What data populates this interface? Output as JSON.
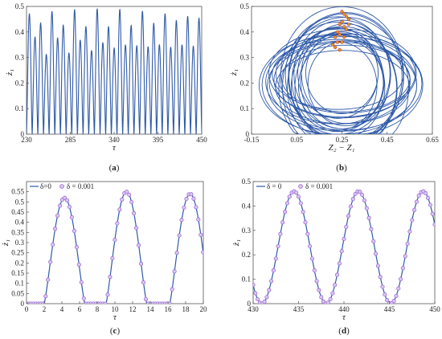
{
  "colors": {
    "line": "#2f5aa8",
    "marker_edge": "#9a5fd3",
    "marker_fill": "#d6c7f0",
    "axis": "#555555",
    "dots": "#c23030",
    "dots_fill": "#e0a020"
  },
  "panels": {
    "a": {
      "label_open": "(",
      "label_letter": "a",
      "label_close": ")"
    },
    "b": {
      "label_open": "(",
      "label_letter": "b",
      "label_close": ")"
    },
    "c": {
      "label_open": "(",
      "label_letter": "c",
      "label_close": ")"
    },
    "d": {
      "label_open": "(",
      "label_letter": "d",
      "label_close": ")"
    }
  },
  "chart_data": [
    {
      "id": "a",
      "type": "line",
      "xlabel": "τ",
      "ylabel": "ż₁",
      "xlim": [
        230,
        450
      ],
      "ylim": [
        0,
        0.5
      ],
      "xticks": [
        "230",
        "285",
        "340",
        "395",
        "450"
      ],
      "yticks": [
        "0",
        "0.1",
        "0.2",
        "0.3",
        "0.4",
        "0.5"
      ],
      "series": [
        {
          "period": 7.1,
          "peaks": [
            0.47,
            0.36,
            0.44,
            0.33
          ]
        }
      ]
    },
    {
      "id": "b",
      "type": "line",
      "xlabel": "Z₂ − Z₁",
      "ylabel": "ż₁",
      "xlim": [
        -0.15,
        0.65
      ],
      "ylim": [
        0,
        0.5
      ],
      "xticks": [
        "-0.15",
        "0.05",
        "0.25",
        "0.45",
        "0.65"
      ],
      "yticks": [
        "0",
        "0.1",
        "0.2",
        "0.3",
        "0.4",
        "0.5"
      ],
      "series": [
        {
          "center": [
            0.25,
            0.21
          ],
          "rx_range": [
            0.16,
            0.36
          ],
          "ry_range": [
            0.13,
            0.28
          ]
        }
      ],
      "poincare_points": [
        [
          0.26,
          0.47
        ],
        [
          0.27,
          0.46
        ],
        [
          0.25,
          0.44
        ],
        [
          0.28,
          0.45
        ],
        [
          0.24,
          0.43
        ],
        [
          0.26,
          0.42
        ],
        [
          0.23,
          0.4
        ],
        [
          0.27,
          0.41
        ],
        [
          0.24,
          0.39
        ],
        [
          0.22,
          0.38
        ],
        [
          0.26,
          0.38
        ],
        [
          0.23,
          0.36
        ],
        [
          0.21,
          0.35
        ],
        [
          0.25,
          0.36
        ],
        [
          0.22,
          0.34
        ],
        [
          0.24,
          0.33
        ],
        [
          0.28,
          0.43
        ],
        [
          0.25,
          0.48
        ]
      ]
    },
    {
      "id": "c",
      "type": "line",
      "xlabel": "τ",
      "ylabel": "ż₁",
      "xlim": [
        0,
        20
      ],
      "ylim": [
        0,
        0.6
      ],
      "xticks": [
        "0",
        "2",
        "4",
        "6",
        "8",
        "10",
        "12",
        "14",
        "16",
        "18",
        "20"
      ],
      "yticks": [
        "0",
        "0.05",
        "0.1",
        "0.15",
        "0.2",
        "0.25",
        "0.3",
        "0.35",
        "0.4",
        "0.45",
        "0.5",
        "0.55"
      ],
      "legend": {
        "line_label": "δ=0",
        "marker_label": "δ = 0.001",
        "position": "top-left"
      },
      "series": [
        {
          "pulse_starts": [
            2.0,
            9.0,
            16.2
          ],
          "pulse_width": 4.6,
          "peaks": [
            0.52,
            0.55,
            0.54
          ]
        }
      ]
    },
    {
      "id": "d",
      "type": "line",
      "xlabel": "τ",
      "ylabel": "ż₁",
      "xlim": [
        430,
        450
      ],
      "ylim": [
        0,
        0.5
      ],
      "xticks": [
        "430",
        "435",
        "440",
        "445",
        "450"
      ],
      "yticks": [
        "0",
        "0.1",
        "0.2",
        "0.3",
        "0.4",
        "0.5"
      ],
      "legend": {
        "line_label": "δ = 0",
        "marker_label": "δ = 0.001",
        "position": "top-left"
      },
      "series": [
        {
          "peak_taus": [
            434.5,
            441.6,
            448.8
          ],
          "peak": 0.46,
          "min": 0.0
        }
      ]
    }
  ]
}
